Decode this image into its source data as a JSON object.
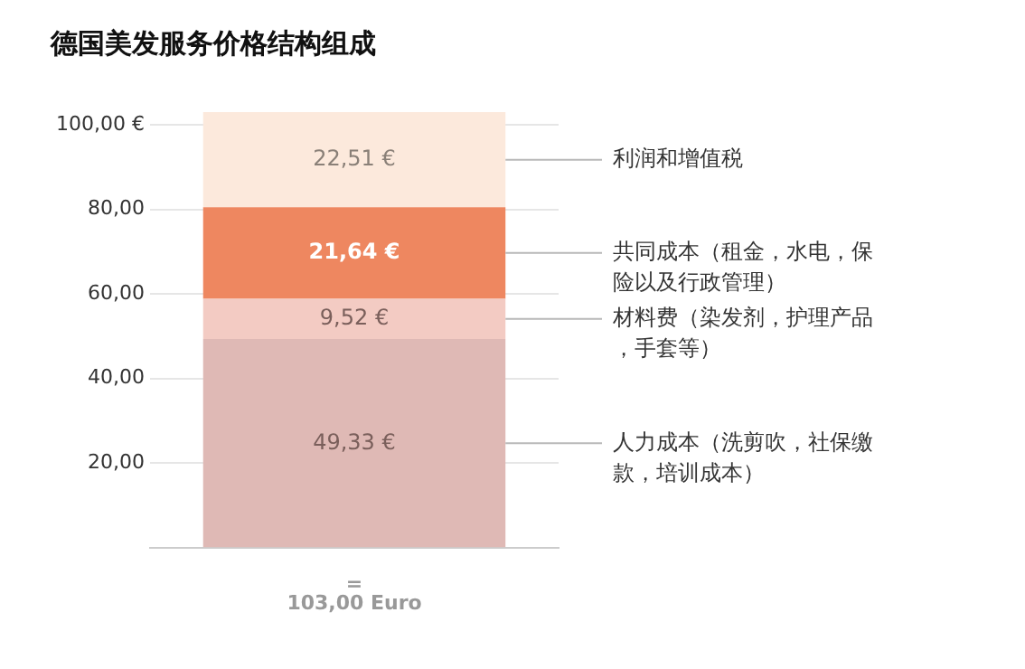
{
  "chart_data": {
    "type": "bar",
    "title": "德国美发服务价格结构组成",
    "stacked": true,
    "categories": [
      "="
    ],
    "series": [
      {
        "name": "人力成本（洗剪吹，社保缴款，培训成本）",
        "color": "#dfb9b5",
        "values": [
          49.33
        ],
        "value_labels": [
          "49,33 €"
        ]
      },
      {
        "name": "材料费（染发剂，护理产品，手套等）",
        "color": "#f3cbc3",
        "values": [
          9.52
        ],
        "value_labels": [
          "9,52 €"
        ]
      },
      {
        "name": "共同成本（租金，水电，保险以及行政管理）",
        "color": "#ee8760",
        "values": [
          21.64
        ],
        "value_labels": [
          "21,64 €"
        ]
      },
      {
        "name": "利润和增值税",
        "color": "#fce9dc",
        "values": [
          22.51
        ],
        "value_labels": [
          "22,51 €"
        ]
      }
    ],
    "totals": [
      "103,00 Euro"
    ],
    "ylim": [
      0,
      103
    ],
    "yticks": [
      {
        "value": 20,
        "label": "20,00"
      },
      {
        "value": 40,
        "label": "40,00"
      },
      {
        "value": 60,
        "label": "60,00"
      },
      {
        "value": 80,
        "label": "80,00"
      },
      {
        "value": 100,
        "label": "100,00 €"
      }
    ],
    "grid": "y",
    "legend": false
  }
}
